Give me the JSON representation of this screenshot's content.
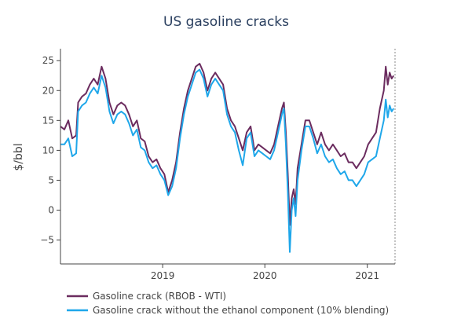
{
  "chart_data": {
    "type": "line",
    "title": "US gasoline cracks",
    "xlabel": "",
    "ylabel": "$/bbl",
    "xlim": [
      "2018-01-01",
      "2021-04-10"
    ],
    "ylim": [
      -9,
      27
    ],
    "x_ticks": [
      {
        "date": "2019-01-01",
        "label": "2019"
      },
      {
        "date": "2020-01-01",
        "label": "2020"
      },
      {
        "date": "2021-01-01",
        "label": "2021"
      }
    ],
    "y_ticks": [
      {
        "value": 25,
        "label": "25"
      },
      {
        "value": 20,
        "label": "20"
      },
      {
        "value": 15,
        "label": "15"
      },
      {
        "value": 10,
        "label": "10"
      },
      {
        "value": 5,
        "label": "5"
      },
      {
        "value": 0,
        "label": "0"
      },
      {
        "value": -5,
        "label": "−5"
      }
    ],
    "grid": false,
    "legend_position": "bottom-left",
    "series": [
      {
        "name": "Gasoline crack (RBOB - WTI)",
        "color": "#6b2c5f",
        "points": [
          [
            "2018-01-01",
            14
          ],
          [
            "2018-01-15",
            13.5
          ],
          [
            "2018-01-29",
            15
          ],
          [
            "2018-02-12",
            12
          ],
          [
            "2018-02-26",
            12.5
          ],
          [
            "2018-03-05",
            18
          ],
          [
            "2018-03-19",
            19
          ],
          [
            "2018-04-02",
            19.5
          ],
          [
            "2018-04-16",
            21
          ],
          [
            "2018-04-30",
            22
          ],
          [
            "2018-05-14",
            21
          ],
          [
            "2018-05-28",
            24
          ],
          [
            "2018-06-11",
            22
          ],
          [
            "2018-06-25",
            18
          ],
          [
            "2018-07-09",
            16
          ],
          [
            "2018-07-23",
            17.5
          ],
          [
            "2018-08-06",
            18
          ],
          [
            "2018-08-20",
            17.5
          ],
          [
            "2018-09-03",
            16
          ],
          [
            "2018-09-17",
            14
          ],
          [
            "2018-10-01",
            15
          ],
          [
            "2018-10-15",
            12
          ],
          [
            "2018-10-29",
            11.5
          ],
          [
            "2018-11-12",
            9
          ],
          [
            "2018-11-26",
            8
          ],
          [
            "2018-12-10",
            8.5
          ],
          [
            "2018-12-24",
            7
          ],
          [
            "2019-01-07",
            6
          ],
          [
            "2019-01-21",
            3
          ],
          [
            "2019-02-04",
            5
          ],
          [
            "2019-02-18",
            8
          ],
          [
            "2019-03-04",
            13
          ],
          [
            "2019-03-18",
            17
          ],
          [
            "2019-04-01",
            20
          ],
          [
            "2019-04-15",
            22
          ],
          [
            "2019-04-29",
            24
          ],
          [
            "2019-05-13",
            24.5
          ],
          [
            "2019-05-27",
            23
          ],
          [
            "2019-06-10",
            20
          ],
          [
            "2019-06-24",
            22
          ],
          [
            "2019-07-08",
            23
          ],
          [
            "2019-07-22",
            22
          ],
          [
            "2019-08-05",
            21
          ],
          [
            "2019-08-19",
            17
          ],
          [
            "2019-09-02",
            15
          ],
          [
            "2019-09-16",
            14
          ],
          [
            "2019-09-30",
            12
          ],
          [
            "2019-10-14",
            10
          ],
          [
            "2019-10-28",
            13
          ],
          [
            "2019-11-11",
            14
          ],
          [
            "2019-11-25",
            10
          ],
          [
            "2019-12-09",
            11
          ],
          [
            "2019-12-23",
            10.5
          ],
          [
            "2020-01-06",
            10
          ],
          [
            "2020-01-20",
            9.5
          ],
          [
            "2020-02-03",
            11
          ],
          [
            "2020-02-17",
            14
          ],
          [
            "2020-03-02",
            17
          ],
          [
            "2020-03-09",
            18
          ],
          [
            "2020-03-16",
            13
          ],
          [
            "2020-03-23",
            6
          ],
          [
            "2020-03-30",
            -2.5
          ],
          [
            "2020-04-06",
            2
          ],
          [
            "2020-04-13",
            3.5
          ],
          [
            "2020-04-20",
            1
          ],
          [
            "2020-04-27",
            7
          ],
          [
            "2020-05-11",
            11
          ],
          [
            "2020-05-25",
            15
          ],
          [
            "2020-06-08",
            15
          ],
          [
            "2020-06-22",
            13
          ],
          [
            "2020-07-06",
            11
          ],
          [
            "2020-07-20",
            13
          ],
          [
            "2020-08-03",
            11
          ],
          [
            "2020-08-17",
            10
          ],
          [
            "2020-08-31",
            11
          ],
          [
            "2020-09-14",
            10
          ],
          [
            "2020-09-28",
            9
          ],
          [
            "2020-10-12",
            9.5
          ],
          [
            "2020-10-26",
            8
          ],
          [
            "2020-11-09",
            8
          ],
          [
            "2020-11-23",
            7
          ],
          [
            "2020-12-07",
            8
          ],
          [
            "2020-12-21",
            9
          ],
          [
            "2021-01-04",
            11
          ],
          [
            "2021-01-18",
            12
          ],
          [
            "2021-02-01",
            13
          ],
          [
            "2021-02-15",
            17
          ],
          [
            "2021-03-01",
            20
          ],
          [
            "2021-03-08",
            24
          ],
          [
            "2021-03-15",
            21
          ],
          [
            "2021-03-22",
            23
          ],
          [
            "2021-03-29",
            22
          ],
          [
            "2021-04-05",
            22.5
          ]
        ]
      },
      {
        "name": "Gasoline crack without the ethanol component (10% blending)",
        "color": "#1fa7ea",
        "points": [
          [
            "2018-01-01",
            11
          ],
          [
            "2018-01-15",
            11
          ],
          [
            "2018-01-29",
            12
          ],
          [
            "2018-02-12",
            9
          ],
          [
            "2018-02-26",
            9.5
          ],
          [
            "2018-03-05",
            16.5
          ],
          [
            "2018-03-19",
            17.5
          ],
          [
            "2018-04-02",
            18
          ],
          [
            "2018-04-16",
            19.5
          ],
          [
            "2018-04-30",
            20.5
          ],
          [
            "2018-05-14",
            19.5
          ],
          [
            "2018-05-28",
            22.5
          ],
          [
            "2018-06-11",
            20.5
          ],
          [
            "2018-06-25",
            16.5
          ],
          [
            "2018-07-09",
            14.5
          ],
          [
            "2018-07-23",
            16
          ],
          [
            "2018-08-06",
            16.5
          ],
          [
            "2018-08-20",
            16
          ],
          [
            "2018-09-03",
            14.5
          ],
          [
            "2018-09-17",
            12.5
          ],
          [
            "2018-10-01",
            13.5
          ],
          [
            "2018-10-15",
            10.5
          ],
          [
            "2018-10-29",
            10
          ],
          [
            "2018-11-12",
            8
          ],
          [
            "2018-11-26",
            7
          ],
          [
            "2018-12-10",
            7.5
          ],
          [
            "2018-12-24",
            6
          ],
          [
            "2019-01-07",
            5
          ],
          [
            "2019-01-21",
            2.5
          ],
          [
            "2019-02-04",
            4
          ],
          [
            "2019-02-18",
            7
          ],
          [
            "2019-03-04",
            12
          ],
          [
            "2019-03-18",
            16
          ],
          [
            "2019-04-01",
            19
          ],
          [
            "2019-04-15",
            21
          ],
          [
            "2019-04-29",
            23
          ],
          [
            "2019-05-13",
            23.5
          ],
          [
            "2019-05-27",
            22
          ],
          [
            "2019-06-10",
            19
          ],
          [
            "2019-06-24",
            21
          ],
          [
            "2019-07-08",
            22
          ],
          [
            "2019-07-22",
            21
          ],
          [
            "2019-08-05",
            20
          ],
          [
            "2019-08-19",
            16
          ],
          [
            "2019-09-02",
            14
          ],
          [
            "2019-09-16",
            13
          ],
          [
            "2019-09-30",
            10
          ],
          [
            "2019-10-14",
            7.5
          ],
          [
            "2019-10-28",
            12
          ],
          [
            "2019-11-11",
            13
          ],
          [
            "2019-11-25",
            9
          ],
          [
            "2019-12-09",
            10
          ],
          [
            "2019-12-23",
            9.5
          ],
          [
            "2020-01-06",
            9
          ],
          [
            "2020-01-20",
            8.5
          ],
          [
            "2020-02-03",
            10
          ],
          [
            "2020-02-17",
            13
          ],
          [
            "2020-03-02",
            16
          ],
          [
            "2020-03-09",
            17
          ],
          [
            "2020-03-16",
            11
          ],
          [
            "2020-03-23",
            3
          ],
          [
            "2020-03-30",
            -7
          ],
          [
            "2020-04-06",
            0
          ],
          [
            "2020-04-13",
            2
          ],
          [
            "2020-04-20",
            -1
          ],
          [
            "2020-04-27",
            5
          ],
          [
            "2020-05-11",
            10
          ],
          [
            "2020-05-25",
            14
          ],
          [
            "2020-06-08",
            14
          ],
          [
            "2020-06-22",
            12
          ],
          [
            "2020-07-06",
            9.5
          ],
          [
            "2020-07-20",
            11
          ],
          [
            "2020-08-03",
            9
          ],
          [
            "2020-08-17",
            8
          ],
          [
            "2020-08-31",
            8.5
          ],
          [
            "2020-09-14",
            7
          ],
          [
            "2020-09-28",
            6
          ],
          [
            "2020-10-12",
            6.5
          ],
          [
            "2020-10-26",
            5
          ],
          [
            "2020-11-09",
            5
          ],
          [
            "2020-11-23",
            4
          ],
          [
            "2020-12-07",
            5
          ],
          [
            "2020-12-21",
            6
          ],
          [
            "2021-01-04",
            8
          ],
          [
            "2021-01-18",
            8.5
          ],
          [
            "2021-02-01",
            9
          ],
          [
            "2021-02-15",
            12
          ],
          [
            "2021-03-01",
            15
          ],
          [
            "2021-03-08",
            18.5
          ],
          [
            "2021-03-15",
            15.5
          ],
          [
            "2021-03-22",
            17.5
          ],
          [
            "2021-03-29",
            16.5
          ],
          [
            "2021-04-05",
            17
          ]
        ]
      }
    ]
  }
}
